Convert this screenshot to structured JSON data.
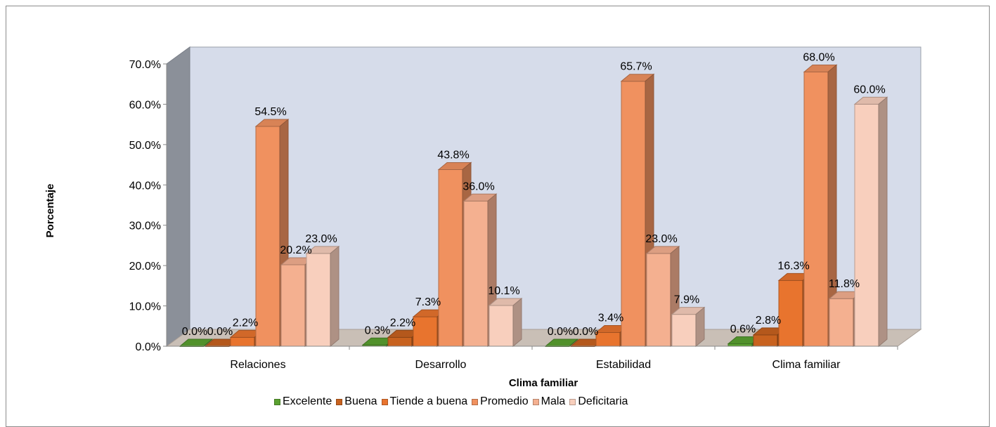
{
  "chart_data": {
    "type": "bar",
    "xlabel": "Clima familiar",
    "ylabel": "Porcentaje",
    "ylim": [
      0,
      70
    ],
    "yticks": [
      "0.0%",
      "10.0%",
      "20.0%",
      "30.0%",
      "40.0%",
      "50.0%",
      "60.0%",
      "70.0%"
    ],
    "categories": [
      "Relaciones",
      "Desarrollo",
      "Estabilidad",
      "Clima familiar"
    ],
    "series": [
      {
        "name": "Excelente",
        "values": [
          0.0,
          0.3,
          0.0,
          0.6
        ],
        "labels": [
          "0.0%",
          "0.3%",
          "0.0%",
          "0.6%"
        ],
        "color": "#5aa130"
      },
      {
        "name": "Buena",
        "values": [
          0.0,
          2.2,
          0.0,
          2.8
        ],
        "labels": [
          "0.0%",
          "2.2%",
          "0.0%",
          "2.8%"
        ],
        "color": "#c8621f"
      },
      {
        "name": "Tiende a buena",
        "values": [
          2.2,
          7.3,
          3.4,
          16.3
        ],
        "labels": [
          "2.2%",
          "7.3%",
          "3.4%",
          "16.3%"
        ],
        "color": "#e8742e"
      },
      {
        "name": "Promedio",
        "values": [
          54.5,
          43.8,
          65.7,
          68.0
        ],
        "labels": [
          "54.5%",
          "43.8%",
          "65.7%",
          "68.0%"
        ],
        "color": "#f0915f"
      },
      {
        "name": "Mala",
        "values": [
          20.2,
          36.0,
          23.0,
          11.8
        ],
        "labels": [
          "20.2%",
          "36.0%",
          "23.0%",
          "11.8%"
        ],
        "color": "#f4b090"
      },
      {
        "name": "Deficitaria",
        "values": [
          23.0,
          10.1,
          7.9,
          60.0
        ],
        "labels": [
          "23.0%",
          "10.1%",
          "7.9%",
          "60.0%"
        ],
        "color": "#f8cfbd"
      }
    ],
    "grid": false,
    "legend_position": "bottom"
  }
}
